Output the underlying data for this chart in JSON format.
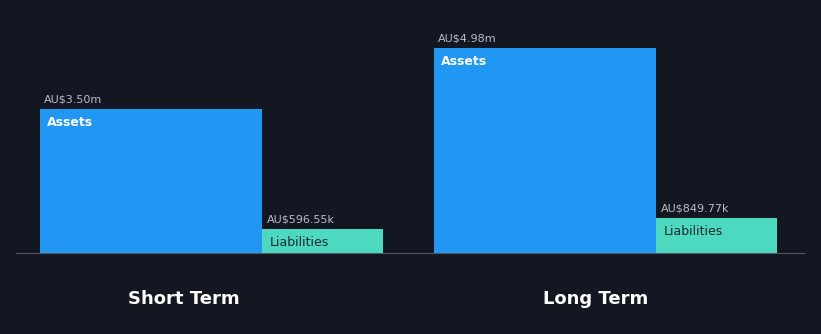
{
  "background_color": "#131722",
  "short_term": {
    "label": "Short Term",
    "assets": {
      "value": 3.5,
      "label": "AU$3.50m",
      "bar_label": "Assets",
      "color": "#2196F3"
    },
    "liabilities": {
      "value": 0.59655,
      "label": "AU$596.55k",
      "bar_label": "Liabilities",
      "color": "#4DD9C0"
    }
  },
  "long_term": {
    "label": "Long Term",
    "assets": {
      "value": 4.98,
      "label": "AU$4.98m",
      "bar_label": "Assets",
      "color": "#2196F3"
    },
    "liabilities": {
      "value": 0.84977,
      "label": "AU$849.77k",
      "bar_label": "Liabilities",
      "color": "#4DD9C0"
    }
  },
  "text_color": "#FFFFFF",
  "label_color": "#BBBBCC",
  "axis_line_color": "#555566",
  "section_label_fontsize": 13,
  "bar_label_fontsize": 9,
  "value_label_fontsize": 8
}
